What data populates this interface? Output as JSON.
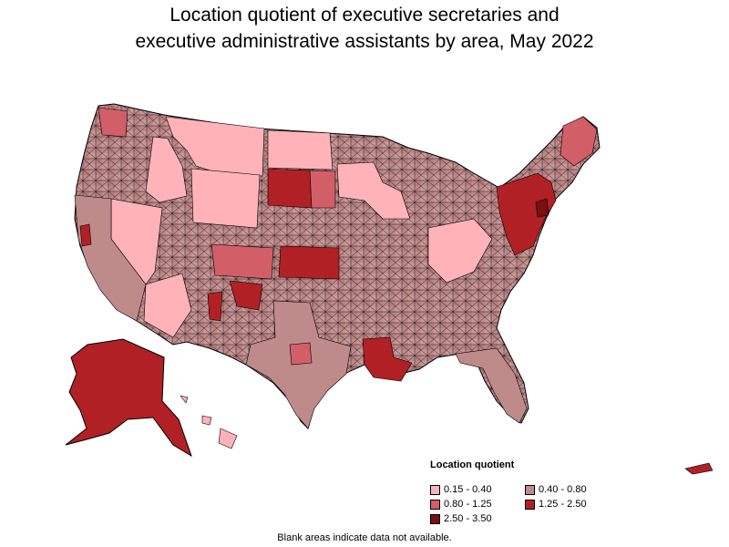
{
  "title_line1": "Location quotient of executive secretaries and",
  "title_line2": "executive administrative assistants by area, May 2022",
  "legend": {
    "title": "Location quotient",
    "items": [
      {
        "label": "0.15 - 0.40",
        "color": "#ffb3b9"
      },
      {
        "label": "0.40 - 0.80",
        "color": "#bf8a8a"
      },
      {
        "label": "0.80 - 1.25",
        "color": "#d25e68"
      },
      {
        "label": "1.25 - 2.50",
        "color": "#b02025"
      },
      {
        "label": "2.50 - 3.50",
        "color": "#7a0f14"
      }
    ]
  },
  "footnote": "Blank areas indicate data not available.",
  "colors": {
    "border": "#000000",
    "background": "#ffffff"
  },
  "regions": [
    {
      "name": "montana",
      "class": 0
    },
    {
      "name": "wyoming",
      "class": 0
    },
    {
      "name": "nevada",
      "class": 0
    },
    {
      "name": "north-dakota",
      "class": 0
    },
    {
      "name": "south-dakota-west",
      "class": 3
    },
    {
      "name": "kansas",
      "class": 3
    },
    {
      "name": "new-mexico-central",
      "class": 3
    },
    {
      "name": "alaska",
      "class": 3
    },
    {
      "name": "louisiana",
      "class": 3
    },
    {
      "name": "northeast-corridor",
      "class": 3
    },
    {
      "name": "texas",
      "class": 1
    },
    {
      "name": "california",
      "class": 1
    },
    {
      "name": "maine",
      "class": 2
    },
    {
      "name": "hawaii",
      "class": 0
    },
    {
      "name": "puerto-rico",
      "class": 3
    }
  ]
}
